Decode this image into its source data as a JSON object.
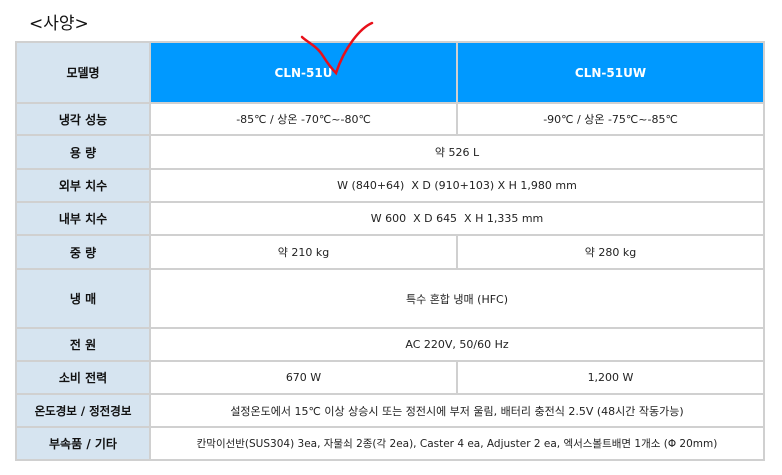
{
  "title": "<사양>",
  "rows": [
    {
      "label": "모델명",
      "cells": [
        "CLN-51U",
        "CLN-51UW"
      ]
    },
    {
      "label": "냉각 성능",
      "cells": [
        "-85℃ / 상온 -70℃~-80℃",
        "-90℃ / 상온 -75℃~-85℃"
      ]
    },
    {
      "label": "용 량",
      "cells": [
        "약 526 L"
      ]
    },
    {
      "label": "외부 치수",
      "cells": [
        "W (840+64)  X D (910+103) X H 1,980 mm"
      ]
    },
    {
      "label": "내부 치수",
      "cells": [
        "W 600  X D 645  X H 1,335 mm"
      ]
    },
    {
      "label": "중 량",
      "cells": [
        "약 210 kg",
        "약 280 kg"
      ]
    },
    {
      "label": "냉 매",
      "cells": [
        "특수 혼합 냉매 (HFC)"
      ]
    },
    {
      "label": "전 원",
      "cells": [
        "AC 220V, 50/60 Hz"
      ]
    },
    {
      "label": "소비 전력",
      "cells": [
        "670 W",
        "1,200 W"
      ]
    },
    {
      "label": "온도경보 / 정전경보",
      "cells": [
        "설정온도에서 15℃ 이상 상승시 또는 정전시에 부저 울림, 배터리 충전식 2.5V (48시간 작동가능)"
      ]
    },
    {
      "label": "부속품 / 기타",
      "cells": [
        "칸막이선반(SUS304) 3ea, 자물쇠 2종(각 2ea), Caster 4 ea, Adjuster 2 ea, 엑서스볼트배면 1개소 (Φ 20mm)"
      ]
    }
  ],
  "colors": {
    "header": "#0099ff",
    "label_bg": "#d6e4f0",
    "annotation": "#e8101a"
  }
}
